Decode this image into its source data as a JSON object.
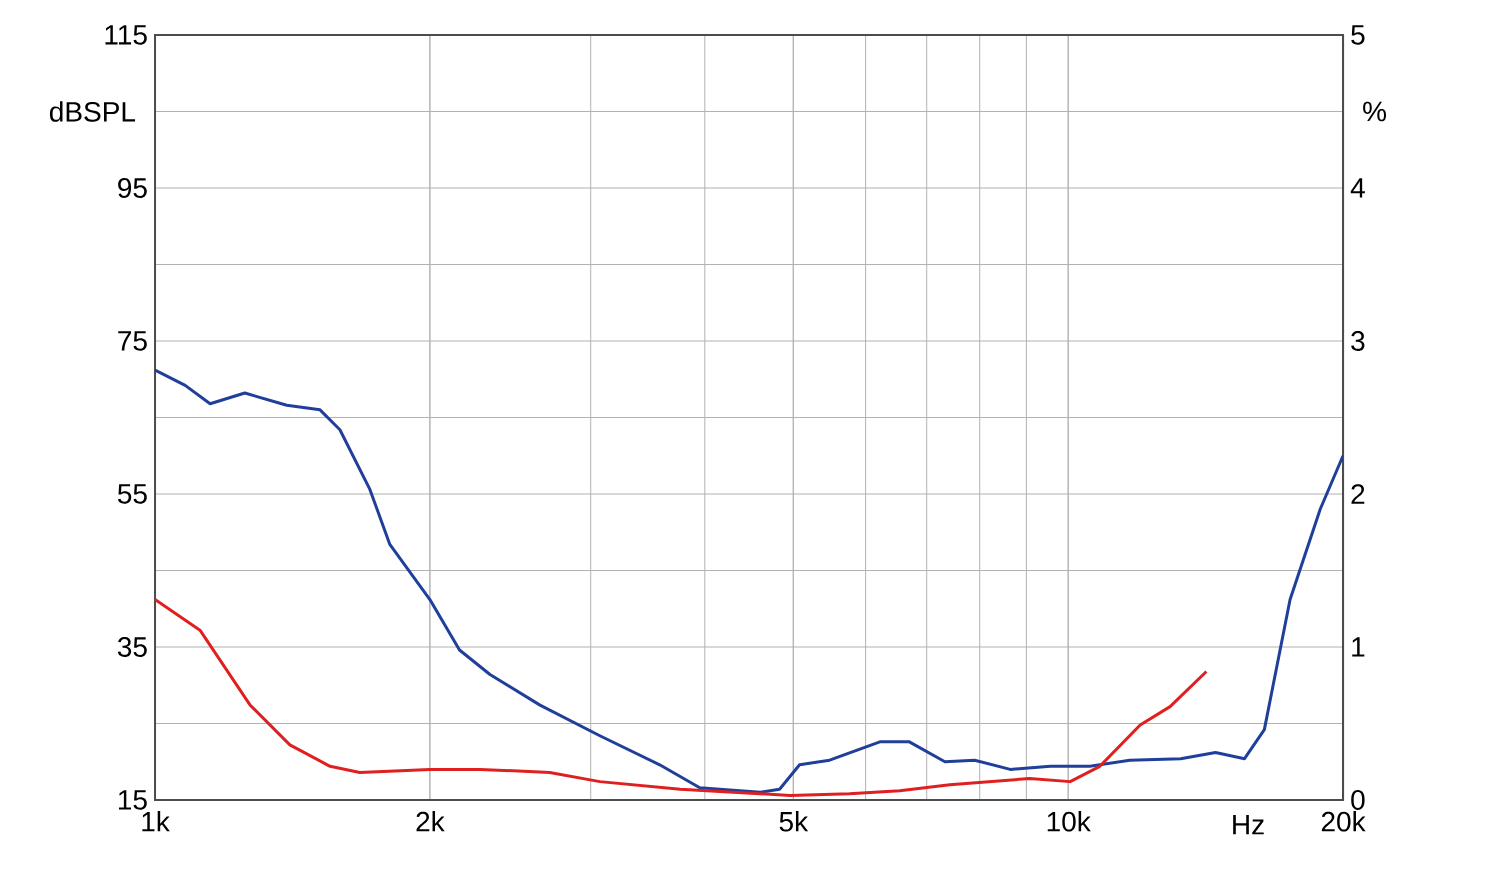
{
  "chart_data": {
    "type": "line",
    "xlabel": "Hz",
    "ylabel": "dBSPL",
    "y2label": "%",
    "log": "x",
    "grid": true,
    "xlim": [
      1000,
      20000
    ],
    "xticks": [
      {
        "value": 1000,
        "label": "1k"
      },
      {
        "value": 2000,
        "label": "2k"
      },
      {
        "value": 5000,
        "label": "5k"
      },
      {
        "value": 10000,
        "label": "10k"
      },
      {
        "value": 20000,
        "label": "20k"
      }
    ],
    "ylim": [
      15,
      115
    ],
    "yticks": [
      15,
      35,
      55,
      75,
      95,
      115
    ],
    "y2lim": [
      0,
      5
    ],
    "y2ticks": [
      0,
      1,
      2,
      3,
      4,
      5
    ],
    "series": [
      {
        "color": "#1f3f9a",
        "axis": "y2",
        "x": [
          1000,
          1079,
          1149,
          1254,
          1394,
          1516,
          1594,
          1719,
          1808,
          2000,
          2155,
          2327,
          2640,
          3070,
          3570,
          3950,
          4600,
          4830,
          5080,
          5480,
          6220,
          6700,
          7330,
          7900,
          8640,
          9560,
          10560,
          11680,
          13280,
          14500,
          15600,
          16400,
          17500,
          18880,
          20000
        ],
        "values": [
          2.81,
          2.71,
          2.59,
          2.66,
          2.58,
          2.55,
          2.42,
          2.03,
          1.67,
          1.31,
          0.98,
          0.82,
          0.62,
          0.42,
          0.23,
          0.08,
          0.05,
          0.07,
          0.23,
          0.26,
          0.38,
          0.38,
          0.25,
          0.26,
          0.2,
          0.22,
          0.22,
          0.26,
          0.27,
          0.31,
          0.27,
          0.46,
          1.31,
          1.9,
          2.25
        ]
      },
      {
        "color": "#e02020",
        "axis": "y2",
        "x": [
          1000,
          1120,
          1271,
          1405,
          1555,
          1676,
          2000,
          2270,
          2705,
          3070,
          3760,
          4960,
          5760,
          6540,
          7420,
          9070,
          10050,
          10830,
          11990,
          12930,
          14170
        ],
        "values": [
          1.31,
          1.11,
          0.62,
          0.36,
          0.22,
          0.18,
          0.2,
          0.2,
          0.18,
          0.12,
          0.07,
          0.03,
          0.04,
          0.06,
          0.1,
          0.14,
          0.12,
          0.22,
          0.49,
          0.61,
          0.84
        ]
      }
    ]
  }
}
